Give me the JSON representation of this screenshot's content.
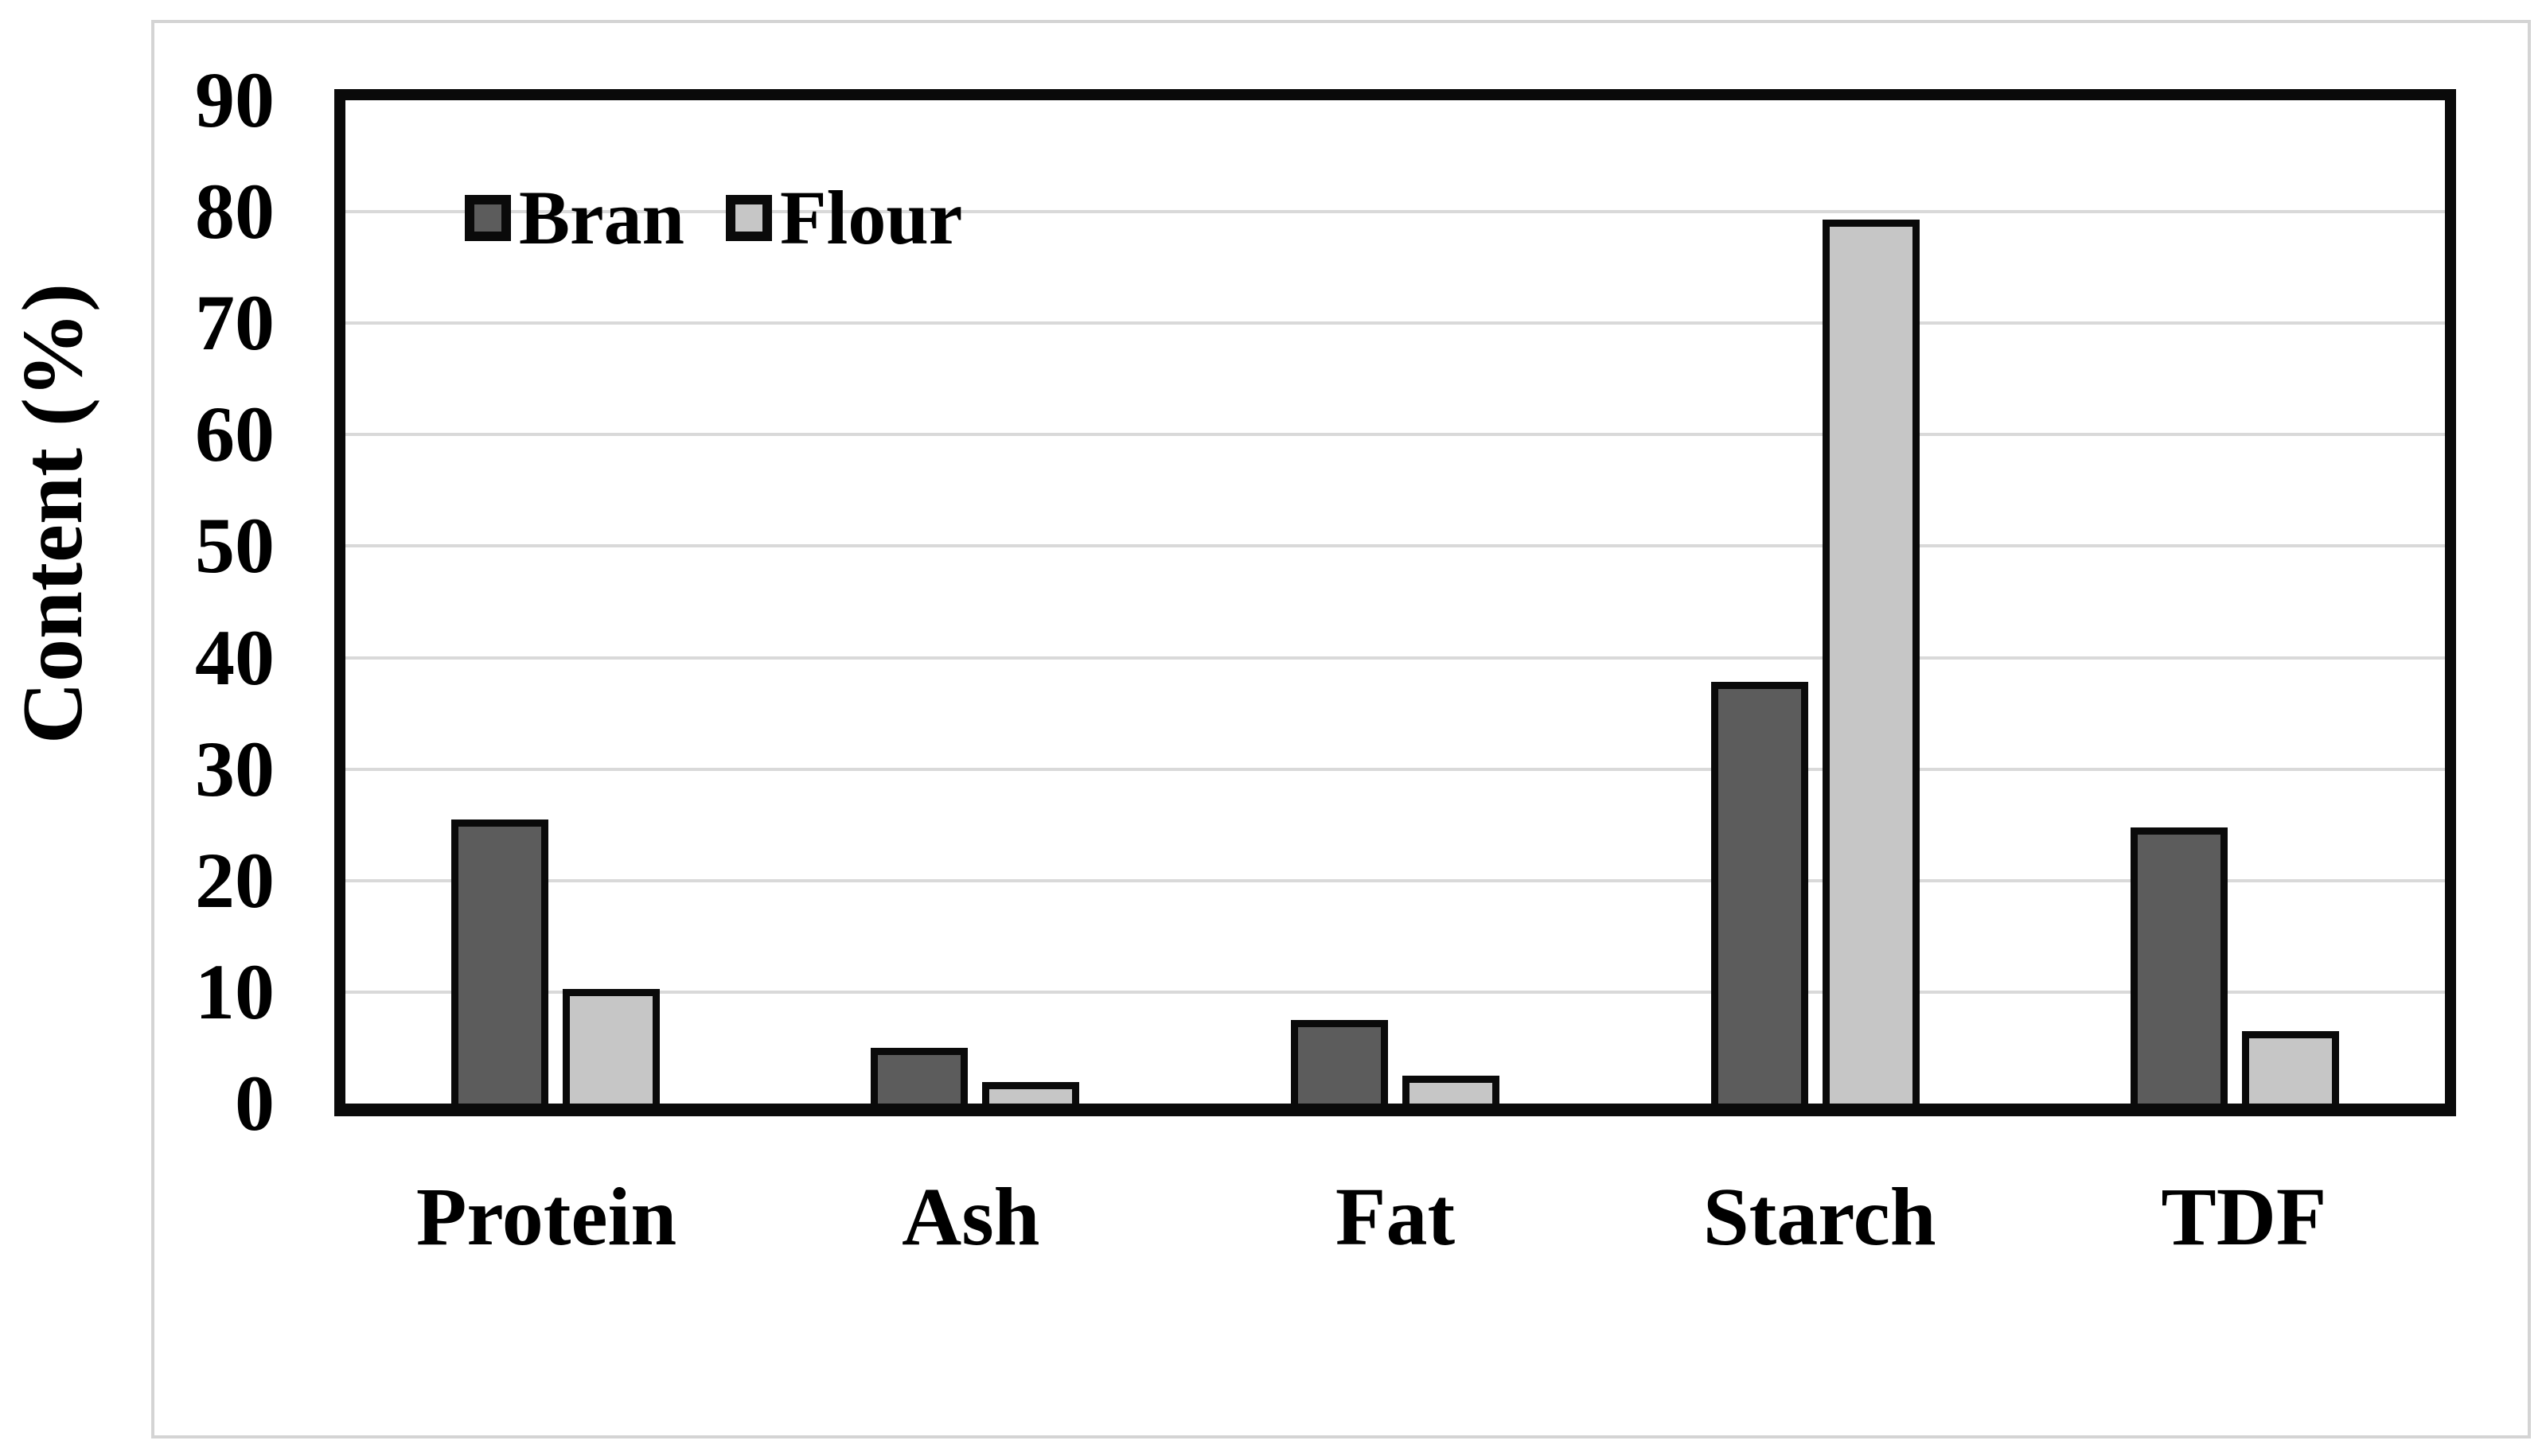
{
  "chart_data": {
    "type": "bar",
    "title": "",
    "ylabel": "Content (%)",
    "xlabel": "",
    "ylim": [
      0,
      90
    ],
    "ytick_step": 10,
    "yticks": [
      0,
      10,
      20,
      30,
      40,
      50,
      60,
      70,
      80,
      90
    ],
    "grid": "horizontal",
    "legend_position": "top-left-inside",
    "categories": [
      "Protein",
      "Ash",
      "Fat",
      "Starch",
      "TDF"
    ],
    "series": [
      {
        "name": "Bran",
        "color": "#5c5c5c",
        "values": [
          25.5,
          5.0,
          7.5,
          37.8,
          24.8
        ]
      },
      {
        "name": "Flour",
        "color": "#c6c6c6",
        "values": [
          10.3,
          1.9,
          2.5,
          79.3,
          6.5
        ]
      }
    ],
    "colors": {
      "bar_border": "#0a0a0a",
      "plot_border": "#0a0a0a",
      "gridline": "#d9d9d9",
      "figure_frame": "#d4d4d4",
      "text": "#000000",
      "background": "#ffffff"
    }
  }
}
